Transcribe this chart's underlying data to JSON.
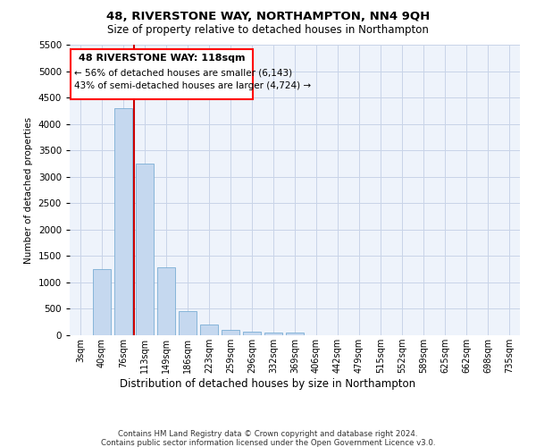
{
  "title1": "48, RIVERSTONE WAY, NORTHAMPTON, NN4 9QH",
  "title2": "Size of property relative to detached houses in Northampton",
  "xlabel": "Distribution of detached houses by size in Northampton",
  "ylabel": "Number of detached properties",
  "footer1": "Contains HM Land Registry data © Crown copyright and database right 2024.",
  "footer2": "Contains public sector information licensed under the Open Government Licence v3.0.",
  "annotation_line1": "48 RIVERSTONE WAY: 118sqm",
  "annotation_line2": "← 56% of detached houses are smaller (6,143)",
  "annotation_line3": "43% of semi-detached houses are larger (4,724) →",
  "bar_color": "#c5d8ef",
  "bar_edge_color": "#7aadd4",
  "redline_x": 2.5,
  "redline_color": "#cc0000",
  "ylim": [
    0,
    5500
  ],
  "yticks": [
    0,
    500,
    1000,
    1500,
    2000,
    2500,
    3000,
    3500,
    4000,
    4500,
    5000,
    5500
  ],
  "categories": [
    "3sqm",
    "40sqm",
    "76sqm",
    "113sqm",
    "149sqm",
    "186sqm",
    "223sqm",
    "259sqm",
    "296sqm",
    "332sqm",
    "369sqm",
    "406sqm",
    "442sqm",
    "479sqm",
    "515sqm",
    "552sqm",
    "589sqm",
    "625sqm",
    "662sqm",
    "698sqm",
    "735sqm"
  ],
  "values": [
    0,
    1250,
    4300,
    3250,
    1280,
    460,
    195,
    100,
    75,
    55,
    45,
    0,
    0,
    0,
    0,
    0,
    0,
    0,
    0,
    0,
    0
  ],
  "bg_color": "#eef3fb",
  "grid_color": "#c8d4e8"
}
